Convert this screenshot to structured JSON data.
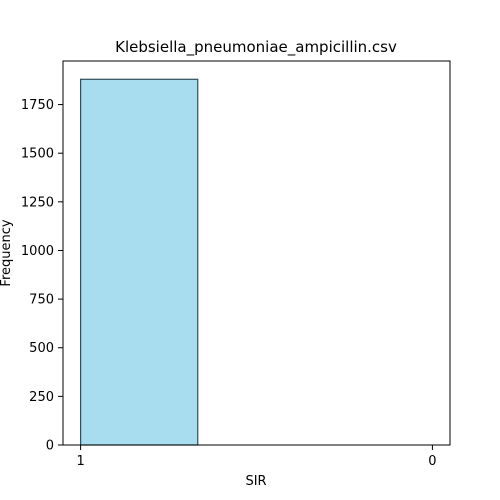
{
  "chart_data": {
    "type": "bar",
    "title": "Klebsiella_pneumoniae_ampicillin.csv",
    "xlabel": "SIR",
    "ylabel": "Frequency",
    "bins": [
      {
        "x_start": 1.0,
        "x_end": 0.667,
        "value": 1880
      },
      {
        "x_start": 0.667,
        "x_end": 0.333,
        "value": 0
      },
      {
        "x_start": 0.333,
        "x_end": 0.0,
        "value": 0
      }
    ],
    "xlim": [
      1.05,
      -0.05
    ],
    "ylim": [
      0,
      1974
    ],
    "xticks": [
      1,
      0
    ],
    "xtick_labels": [
      "1",
      "0"
    ],
    "yticks": [
      0,
      250,
      500,
      750,
      1000,
      1250,
      1500,
      1750
    ],
    "ytick_labels": [
      "0",
      "250",
      "500",
      "750",
      "1000",
      "1250",
      "1500",
      "1750"
    ],
    "bar_color": "#a8dcef",
    "edge_color": "#2f4f5a",
    "grid": false,
    "legend": false
  }
}
